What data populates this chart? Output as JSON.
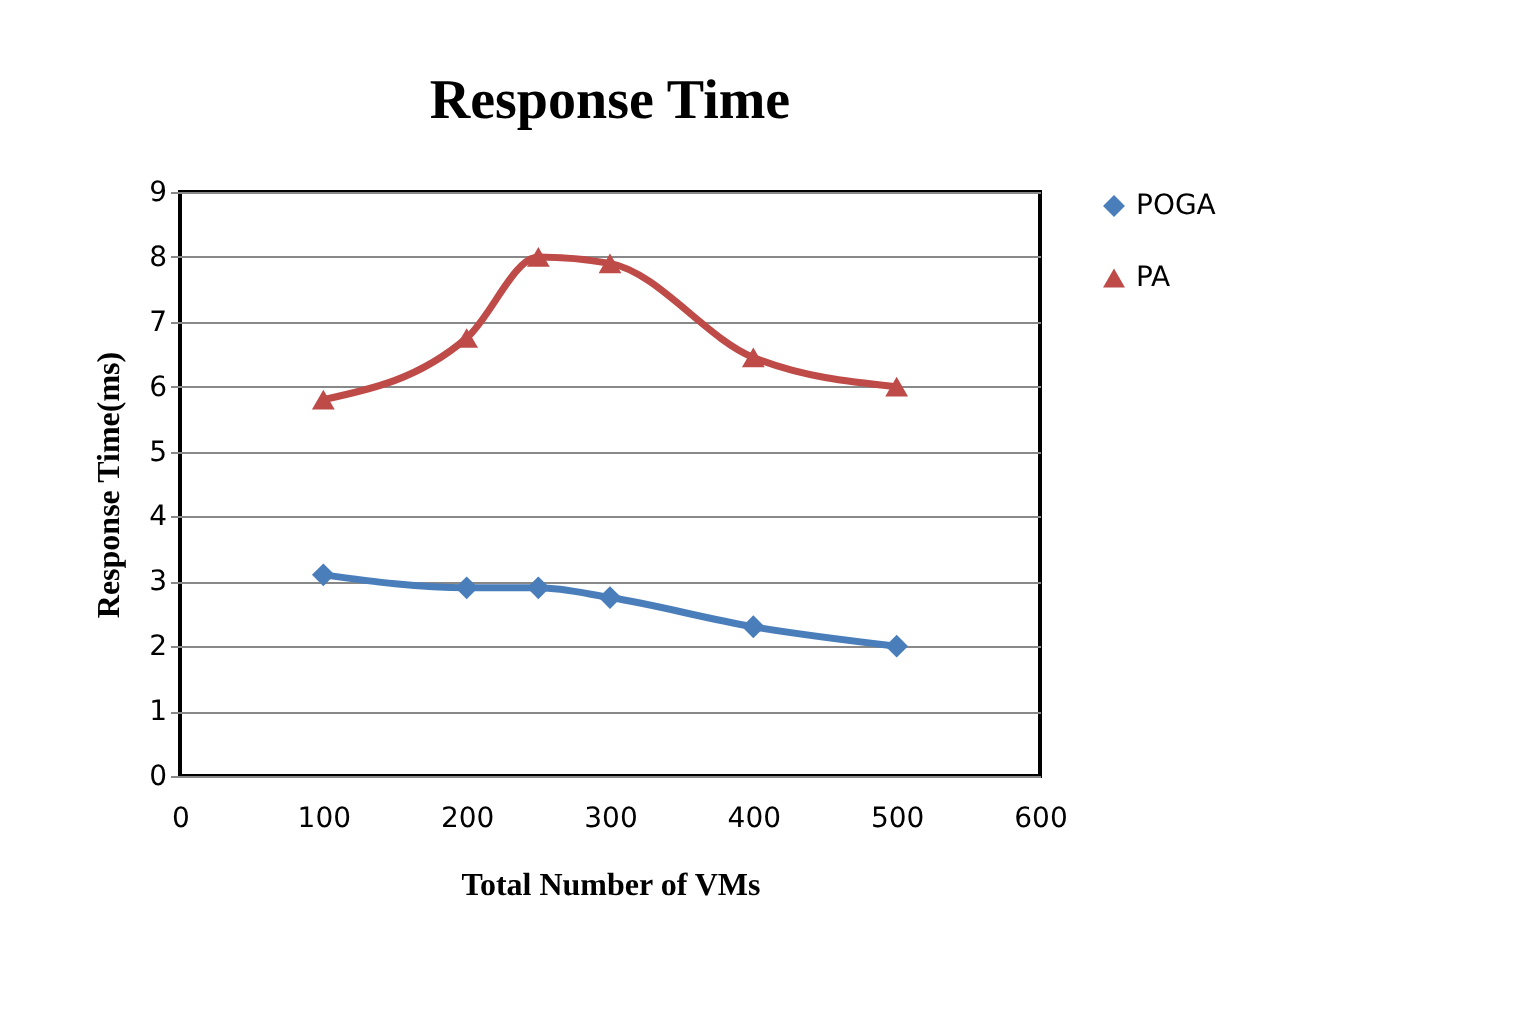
{
  "chart_data": {
    "type": "line",
    "title": "Response Time",
    "xlabel": "Total Number of VMs",
    "ylabel": "Response Time(ms)",
    "x": [
      100,
      200,
      250,
      300,
      400,
      500
    ],
    "series": [
      {
        "name": "POGA",
        "color": "#4a7ebb",
        "marker": "diamond",
        "values": [
          3.1,
          2.9,
          2.9,
          2.75,
          2.3,
          2.0
        ]
      },
      {
        "name": "PA",
        "color": "#be4b48",
        "marker": "triangle",
        "values": [
          5.8,
          6.75,
          8.0,
          7.9,
          6.45,
          6.0
        ]
      }
    ],
    "xlim": [
      0,
      600
    ],
    "xticks": [
      0,
      100,
      200,
      300,
      400,
      500,
      600
    ],
    "ylim": [
      0,
      9
    ],
    "yticks": [
      0,
      1,
      2,
      3,
      4,
      5,
      6,
      7,
      8,
      9
    ],
    "grid": "y",
    "legend": "right",
    "line_style": "solid"
  }
}
